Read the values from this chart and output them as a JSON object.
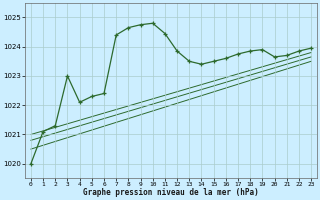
{
  "title": "Graphe pression niveau de la mer (hPa)",
  "background_color": "#cceeff",
  "grid_color": "#aacccc",
  "line_color": "#2d6a2d",
  "xlim": [
    -0.5,
    23.5
  ],
  "ylim": [
    1019.5,
    1025.5
  ],
  "yticks": [
    1020,
    1021,
    1022,
    1023,
    1024,
    1025
  ],
  "xticks": [
    0,
    1,
    2,
    3,
    4,
    5,
    6,
    7,
    8,
    9,
    10,
    11,
    12,
    13,
    14,
    15,
    16,
    17,
    18,
    19,
    20,
    21,
    22,
    23
  ],
  "series_main": {
    "x": [
      0,
      1,
      2,
      3,
      4,
      5,
      6,
      7,
      8,
      9,
      10,
      11,
      12,
      13,
      14,
      15,
      16,
      17,
      18,
      19,
      20,
      21,
      22,
      23
    ],
    "y": [
      1020.0,
      1021.1,
      1021.3,
      1023.0,
      1022.1,
      1022.3,
      1022.4,
      1024.4,
      1024.65,
      1024.75,
      1024.8,
      1024.45,
      1023.85,
      1023.5,
      1023.4,
      1023.5,
      1023.6,
      1023.75,
      1023.85,
      1023.9,
      1023.65,
      1023.7,
      1023.85,
      1023.95
    ]
  },
  "series_smooth": [
    {
      "x": [
        0,
        23
      ],
      "y": [
        1021.0,
        1023.8
      ]
    },
    {
      "x": [
        0,
        23
      ],
      "y": [
        1020.8,
        1023.65
      ]
    },
    {
      "x": [
        0,
        23
      ],
      "y": [
        1020.5,
        1023.5
      ]
    }
  ]
}
